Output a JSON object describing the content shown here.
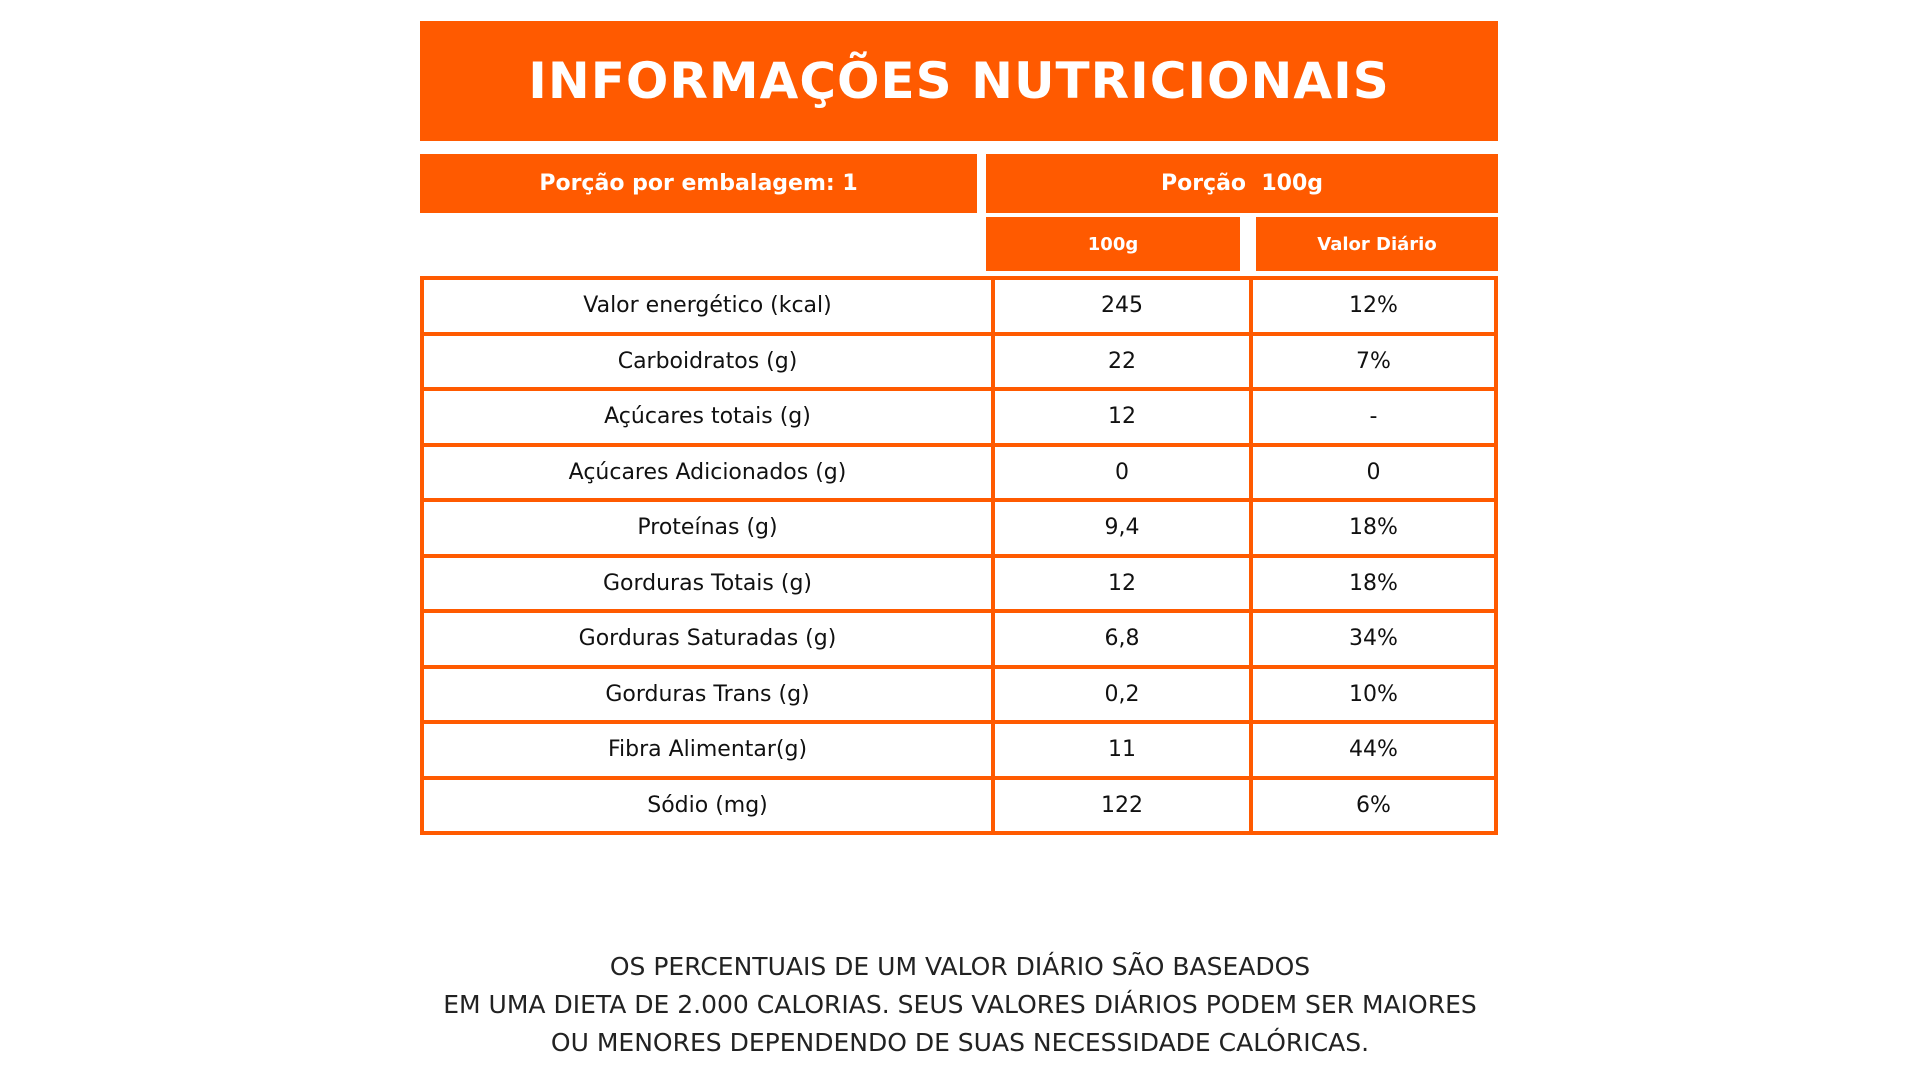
{
  "header": {
    "title": "INFORMAÇÕES NUTRICIONAIS",
    "portion_per_package": "Porção por embalagem: 1",
    "portion": "Porção  100g",
    "col_amount": "100g",
    "col_daily": "Valor Diário"
  },
  "table": {
    "rows": [
      [
        "Valor energético (kcal)",
        "245",
        "12%"
      ],
      [
        "Carboidratos (g)",
        "22",
        "7%"
      ],
      [
        "Açúcares totais (g)",
        "12",
        "-"
      ],
      [
        "Açúcares Adicionados (g)",
        "0",
        "0"
      ],
      [
        "Proteínas (g)",
        "9,4",
        "18%"
      ],
      [
        "Gorduras Totais (g)",
        "12",
        "18%"
      ],
      [
        "Gorduras Saturadas (g)",
        "6,8",
        "34%"
      ],
      [
        "Gorduras Trans (g)",
        "0,2",
        "10%"
      ],
      [
        "Fibra Alimentar(g)",
        "11",
        "44%"
      ],
      [
        "Sódio (mg)",
        "122",
        "6%"
      ]
    ]
  },
  "footer": {
    "lines": [
      "OS PERCENTUAIS DE UM VALOR DIÁRIO SÃO BASEADOS",
      "EM UMA DIETA DE 2.000 CALORIAS. SEUS VALORES DIÁRIOS PODEM SER MAIORES",
      "OU MENORES DEPENDENDO DE SUAS NECESSIDADE CALÓRICAS."
    ]
  }
}
